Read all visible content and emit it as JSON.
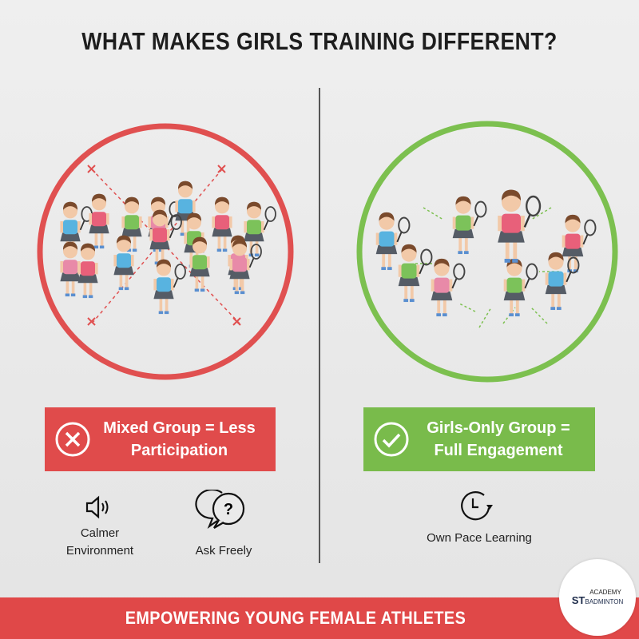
{
  "title": "WHAT MAKES GIRLS TRAINING DIFFERENT?",
  "colors": {
    "red": "#e04b4b",
    "green": "#79bb4b",
    "background": "#e9e9e9"
  },
  "left": {
    "illustration": "crowded-mixed-group",
    "badge_icon": "x-circle-icon",
    "badge_line1": "Mixed Group = Less",
    "badge_line2": "Participation",
    "features": [
      {
        "icon": "speaker-icon",
        "line1": "Calmer",
        "line2": "Environment"
      },
      {
        "icon": "question-chat-icon",
        "line1": "Ask Freely",
        "line2": ""
      }
    ]
  },
  "right": {
    "illustration": "girls-circle-with-coach",
    "badge_icon": "check-circle-icon",
    "badge_line1": "Girls-Only Group =",
    "badge_line2": "Full Engagement",
    "features": [
      {
        "icon": "clock-refresh-icon",
        "line1": "Own Pace Learning"
      }
    ]
  },
  "banner": "EMPOWERING YOUNG FEMALE ATHLETES",
  "logo": {
    "line1": "ACADEMY",
    "line2a": "ST",
    "line2b": "BADMINTON"
  }
}
